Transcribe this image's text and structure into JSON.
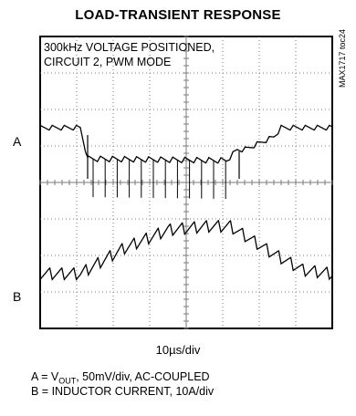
{
  "chart_data": {
    "type": "line",
    "title": "LOAD-TRANSIENT RESPONSE",
    "annotation": "300kHz VOLTAGE POSITIONED, CIRCUIT 2, PWM MODE",
    "annotation_lines": [
      "300kHz VOLTAGE POSITIONED,",
      "CIRCUIT 2, PWM MODE"
    ],
    "side_code": "MAX1717 toc24",
    "xlabel": "10µs/div",
    "grid": true,
    "divisions": {
      "x": 8,
      "y": 8
    },
    "series": [
      {
        "name": "A",
        "channel_label": "A",
        "description": "VOUT, 50mV/div, AC-COUPLED",
        "color": "#000000",
        "x": [
          0,
          1.1,
          1.3,
          5.1,
          5.4,
          5.6,
          6.4,
          6.6,
          8
        ],
        "y": [
          1.5,
          1.5,
          0.65,
          0.6,
          0.9,
          0.9,
          1.25,
          1.5,
          1.5
        ]
      },
      {
        "name": "B",
        "channel_label": "B",
        "description": "INDUCTOR CURRENT, 10A/div",
        "color": "#000000",
        "x": [
          0,
          1.1,
          2.3,
          3.5,
          4.6,
          5.2,
          6.3,
          7.2,
          8
        ],
        "y": [
          -2.5,
          -2.5,
          -1.8,
          -1.3,
          -1.2,
          -1.2,
          -1.9,
          -2.4,
          -2.5
        ]
      }
    ]
  },
  "legend_lines": {
    "a_prefix": "A = V",
    "a_sub": "OUT",
    "a_rest": ", 50mV/div, AC-COUPLED",
    "b": "B = INDUCTOR CURRENT, 10A/div"
  },
  "colors": {
    "trace": "#000000",
    "grid": "#7a7a7a",
    "frame": "#000000"
  }
}
